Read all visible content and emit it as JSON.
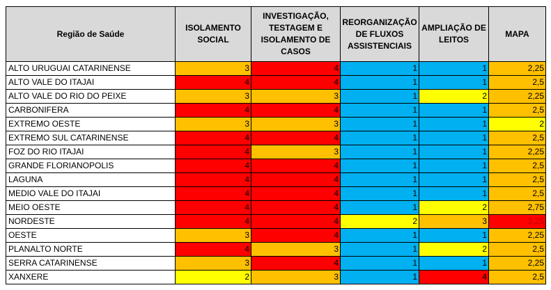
{
  "headers": [
    "Região de Saúde",
    "ISOLAMENTO SOCIAL",
    "INVESTIGAÇÃO, TESTAGEM E ISOLAMENTO DE CASOS",
    "REORGANIZAÇÃO DE FLUXOS ASSISTENCIAIS",
    "AMPLIAÇÃO DE LEITOS",
    "MAPA"
  ],
  "colors": {
    "red": "#ff0000",
    "orange": "#ffc000",
    "blue": "#00b0f0",
    "yellow": "#ffff00",
    "header": "#d9d9d9"
  },
  "rows": [
    {
      "region": "ALTO URUGUAI CATARINENSE",
      "isolamento": "3",
      "investigacao": "4",
      "reorganizacao": "1",
      "ampliacao": "1",
      "mapa": "2,25"
    },
    {
      "region": "ALTO VALE DO ITAJAI",
      "isolamento": "4",
      "investigacao": "4",
      "reorganizacao": "1",
      "ampliacao": "1",
      "mapa": "2,5"
    },
    {
      "region": "ALTO VALE DO RIO DO PEIXE",
      "isolamento": "3",
      "investigacao": "3",
      "reorganizacao": "1",
      "ampliacao": "2",
      "mapa": "2,25"
    },
    {
      "region": "CARBONIFERA",
      "isolamento": "4",
      "investigacao": "4",
      "reorganizacao": "1",
      "ampliacao": "1",
      "mapa": "2,5"
    },
    {
      "region": "EXTREMO OESTE",
      "isolamento": "3",
      "investigacao": "3",
      "reorganizacao": "1",
      "ampliacao": "1",
      "mapa": "2"
    },
    {
      "region": "EXTREMO SUL CATARINENSE",
      "isolamento": "4",
      "investigacao": "4",
      "reorganizacao": "1",
      "ampliacao": "1",
      "mapa": "2,5"
    },
    {
      "region": "FOZ DO RIO ITAJAI",
      "isolamento": "4",
      "investigacao": "3",
      "reorganizacao": "1",
      "ampliacao": "1",
      "mapa": "2,25"
    },
    {
      "region": "GRANDE FLORIANOPOLIS",
      "isolamento": "4",
      "investigacao": "4",
      "reorganizacao": "1",
      "ampliacao": "1",
      "mapa": "2,5"
    },
    {
      "region": "LAGUNA",
      "isolamento": "4",
      "investigacao": "4",
      "reorganizacao": "1",
      "ampliacao": "1",
      "mapa": "2,5"
    },
    {
      "region": "MEDIO VALE DO ITAJAI",
      "isolamento": "4",
      "investigacao": "4",
      "reorganizacao": "1",
      "ampliacao": "1",
      "mapa": "2,5"
    },
    {
      "region": "MEIO OESTE",
      "isolamento": "4",
      "investigacao": "4",
      "reorganizacao": "1",
      "ampliacao": "2",
      "mapa": "2,75"
    },
    {
      "region": "NORDESTE",
      "isolamento": "4",
      "investigacao": "4",
      "reorganizacao": "2",
      "ampliacao": "3",
      "mapa": "3,25"
    },
    {
      "region": "OESTE",
      "isolamento": "3",
      "investigacao": "4",
      "reorganizacao": "1",
      "ampliacao": "1",
      "mapa": "2,25"
    },
    {
      "region": "PLANALTO NORTE",
      "isolamento": "4",
      "investigacao": "3",
      "reorganizacao": "1",
      "ampliacao": "2",
      "mapa": "2,5"
    },
    {
      "region": "SERRA CATARINENSE",
      "isolamento": "3",
      "investigacao": "4",
      "reorganizacao": "1",
      "ampliacao": "1",
      "mapa": "2,25"
    },
    {
      "region": "XANXERE",
      "isolamento": "2",
      "investigacao": "3",
      "reorganizacao": "1",
      "ampliacao": "4",
      "mapa": "2,5"
    }
  ]
}
